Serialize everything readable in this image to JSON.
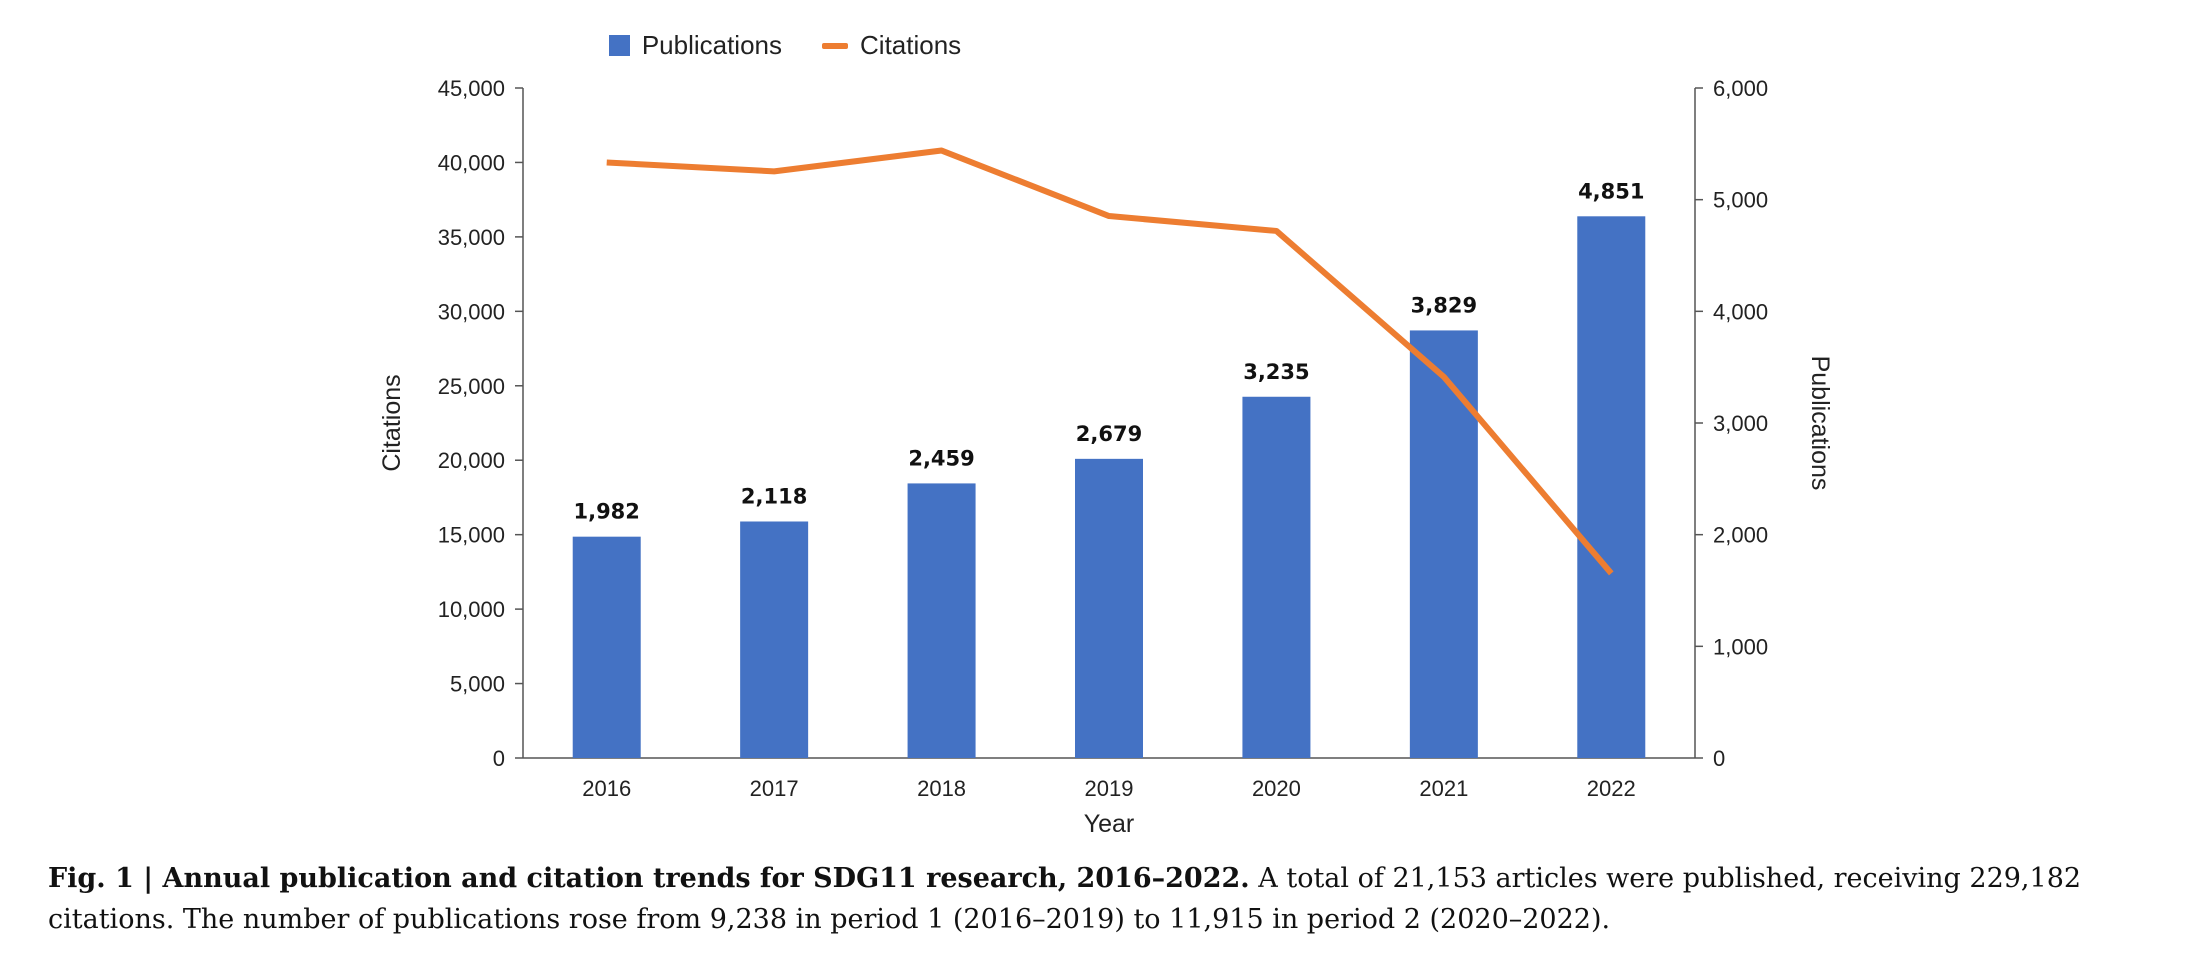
{
  "chart_data": {
    "type": "bar",
    "categories": [
      "2016",
      "2017",
      "2018",
      "2019",
      "2020",
      "2021",
      "2022"
    ],
    "series": [
      {
        "name": "Publications",
        "type": "bar",
        "axis": "right",
        "color": "#4472C4",
        "values": [
          1982,
          2118,
          2459,
          2679,
          3235,
          3829,
          4851
        ],
        "value_labels": [
          "1,982",
          "2,118",
          "2,459",
          "2,679",
          "3,235",
          "3,829",
          "4,851"
        ]
      },
      {
        "name": "Citations",
        "type": "line",
        "axis": "left",
        "color": "#ED7D31",
        "values": [
          40000,
          39400,
          40800,
          36400,
          35400,
          25600,
          12400
        ]
      }
    ],
    "xlabel": "Year",
    "ylabel": "Citations",
    "y2label": "Publications",
    "ylim": [
      0,
      45000
    ],
    "y2lim": [
      0,
      6000
    ],
    "y_ticks": [
      "0",
      "5,000",
      "10,000",
      "15,000",
      "20,000",
      "25,000",
      "30,000",
      "35,000",
      "40,000",
      "45,000"
    ],
    "y2_ticks": [
      "0",
      "1,000",
      "2,000",
      "3,000",
      "4,000",
      "5,000",
      "6,000"
    ],
    "grid": false,
    "legend_position": "top-center"
  },
  "caption": {
    "bold": "Fig. 1 | Annual publication and citation trends for SDG11 research, 2016–2022.",
    "text": " A total of 21,153 articles were published, receiving 229,182 citations. The number of publications rose from 9,238 in period 1 (2016–2019) to 11,915 in period 2 (2020–2022)."
  }
}
